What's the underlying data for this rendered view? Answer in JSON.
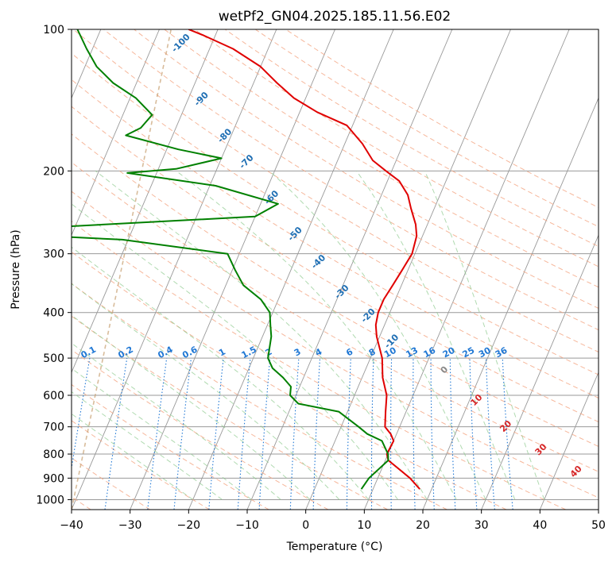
{
  "chart_data": {
    "type": "line",
    "title": "wetPf2_GN04.2025.185.11.56.E02",
    "xlabel": "Temperature (°C)",
    "ylabel": "Pressure (hPa)",
    "xlim": [
      -40,
      50
    ],
    "ylim": [
      1050,
      100
    ],
    "y_scale": "log",
    "x_ticks": [
      -40,
      -30,
      -20,
      -10,
      0,
      10,
      20,
      30,
      40,
      50
    ],
    "y_ticks": [
      100,
      200,
      300,
      400,
      500,
      600,
      700,
      800,
      900,
      1000
    ],
    "grid": true,
    "skew": 35,
    "series": [
      {
        "role": "temperature",
        "color": "#e00000",
        "points": [
          [
            18.0,
            950
          ],
          [
            15.5,
            900
          ],
          [
            10.5,
            825
          ],
          [
            9.8,
            800
          ],
          [
            10.0,
            750
          ],
          [
            9.0,
            725
          ],
          [
            7.5,
            700
          ],
          [
            6.5,
            650
          ],
          [
            6.0,
            625
          ],
          [
            5.5,
            600
          ],
          [
            3.5,
            550
          ],
          [
            2.0,
            500
          ],
          [
            -0.5,
            450
          ],
          [
            -1.5,
            425
          ],
          [
            -2.0,
            400
          ],
          [
            -2.0,
            375
          ],
          [
            -1.5,
            350
          ],
          [
            -1.0,
            325
          ],
          [
            -0.5,
            300
          ],
          [
            -1.0,
            275
          ],
          [
            -2.0,
            260
          ],
          [
            -4.0,
            240
          ],
          [
            -5.5,
            225
          ],
          [
            -8.0,
            210
          ],
          [
            -11.0,
            200
          ],
          [
            -14.0,
            190
          ],
          [
            -17.0,
            175
          ],
          [
            -21.0,
            160
          ],
          [
            -27.0,
            150
          ],
          [
            -32.0,
            140
          ],
          [
            -36.0,
            130
          ],
          [
            -40.0,
            120
          ],
          [
            -46.0,
            110
          ],
          [
            -52.0,
            103
          ],
          [
            -55.0,
            100
          ]
        ]
      },
      {
        "role": "dewpoint",
        "color": "#008000",
        "points": [
          [
            8.0,
            950
          ],
          [
            8.5,
            900
          ],
          [
            10.5,
            825
          ],
          [
            10.0,
            800
          ],
          [
            8.0,
            750
          ],
          [
            5.0,
            725
          ],
          [
            3.0,
            700
          ],
          [
            -1.5,
            650
          ],
          [
            -9.0,
            625
          ],
          [
            -11.0,
            600
          ],
          [
            -11.5,
            575
          ],
          [
            -13.5,
            550
          ],
          [
            -16.0,
            525
          ],
          [
            -17.5,
            500
          ],
          [
            -18.5,
            450
          ],
          [
            -19.5,
            425
          ],
          [
            -20.5,
            400
          ],
          [
            -23.0,
            375
          ],
          [
            -27.0,
            350
          ],
          [
            -29.5,
            325
          ],
          [
            -32.0,
            300
          ],
          [
            -51.0,
            280
          ],
          [
            -72.0,
            272
          ],
          [
            -70.0,
            266
          ],
          [
            -30.0,
            250
          ],
          [
            -27.0,
            235
          ],
          [
            -39.0,
            215
          ],
          [
            -55.0,
            202
          ],
          [
            -47.0,
            198
          ],
          [
            -40.0,
            188
          ],
          [
            -48.0,
            180
          ],
          [
            -58.0,
            168
          ],
          [
            -56.0,
            162
          ],
          [
            -55.0,
            152
          ],
          [
            -59.0,
            140
          ],
          [
            -64.0,
            130
          ],
          [
            -68.0,
            120
          ],
          [
            -71.0,
            110
          ],
          [
            -74.0,
            100
          ]
        ]
      }
    ],
    "dry_adiabat_labels": [
      "-100",
      "-90",
      "-80",
      "-70",
      "-60",
      "-50",
      "-40",
      "-30",
      "-20",
      "-10",
      "0",
      "10",
      "20",
      "30",
      "40"
    ],
    "mixing_ratio_labels": [
      "0.1",
      "0.2",
      "0.4",
      "0.6",
      "1",
      "1.5",
      "2",
      "3",
      "4",
      "6",
      "8",
      "10",
      "13",
      "16",
      "20",
      "25",
      "30",
      "36"
    ],
    "colors": {
      "temperature": "#e00000",
      "dewpoint": "#008000",
      "dry_adiabat": "#f4a582",
      "moist_adiabat": "#8fca8f",
      "mixing_ratio": "#1f77d4",
      "isotherm": "#999999",
      "isobar": "#999999",
      "saturation_curve": "#c8a070"
    }
  }
}
